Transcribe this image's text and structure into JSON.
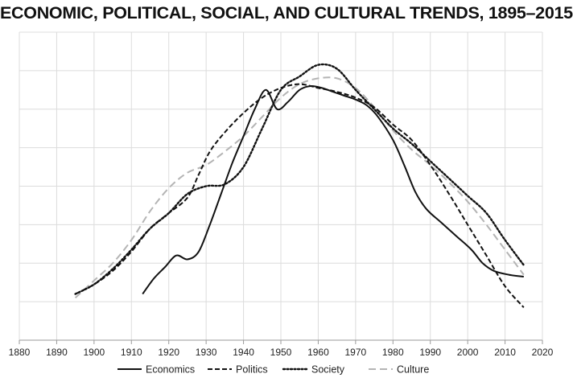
{
  "chart_data": {
    "type": "line",
    "title": "ECONOMIC, POLITICAL, SOCIAL, AND CULTURAL TRENDS, 1895–2015",
    "xlabel": "",
    "ylabel": "",
    "xlim": [
      1880,
      2020
    ],
    "ylim": [
      0,
      8
    ],
    "x_ticks": [
      1880,
      1890,
      1900,
      1910,
      1920,
      1930,
      1940,
      1950,
      1960,
      1970,
      1980,
      1990,
      2000,
      2010,
      2020
    ],
    "y_tick_labels_shown": false,
    "grid": true,
    "legend_position": "bottom",
    "series": [
      {
        "name": "Economics",
        "color": "#111111",
        "dash": "solid",
        "points": [
          [
            1913,
            1.2
          ],
          [
            1916,
            1.6
          ],
          [
            1919,
            1.9
          ],
          [
            1922,
            2.2
          ],
          [
            1925,
            2.1
          ],
          [
            1928,
            2.3
          ],
          [
            1931,
            3.0
          ],
          [
            1934,
            3.8
          ],
          [
            1937,
            4.6
          ],
          [
            1940,
            5.3
          ],
          [
            1943,
            6.0
          ],
          [
            1946,
            6.5
          ],
          [
            1949,
            6.0
          ],
          [
            1952,
            6.2
          ],
          [
            1955,
            6.5
          ],
          [
            1958,
            6.6
          ],
          [
            1961,
            6.55
          ],
          [
            1964,
            6.45
          ],
          [
            1967,
            6.35
          ],
          [
            1970,
            6.25
          ],
          [
            1973,
            6.1
          ],
          [
            1976,
            5.8
          ],
          [
            1980,
            5.2
          ],
          [
            1983,
            4.55
          ],
          [
            1986,
            3.85
          ],
          [
            1989,
            3.4
          ],
          [
            1993,
            3.05
          ],
          [
            1997,
            2.7
          ],
          [
            2001,
            2.35
          ],
          [
            2004,
            2.0
          ],
          [
            2007,
            1.8
          ],
          [
            2011,
            1.7
          ],
          [
            2015,
            1.65
          ]
        ]
      },
      {
        "name": "Politics",
        "color": "#111111",
        "dash": "dashed",
        "points": [
          [
            1895,
            1.2
          ],
          [
            1900,
            1.45
          ],
          [
            1905,
            1.8
          ],
          [
            1910,
            2.3
          ],
          [
            1915,
            2.9
          ],
          [
            1920,
            3.3
          ],
          [
            1925,
            3.7
          ],
          [
            1928,
            4.3
          ],
          [
            1931,
            4.9
          ],
          [
            1935,
            5.4
          ],
          [
            1940,
            5.9
          ],
          [
            1945,
            6.3
          ],
          [
            1950,
            6.55
          ],
          [
            1955,
            6.65
          ],
          [
            1960,
            6.55
          ],
          [
            1965,
            6.45
          ],
          [
            1970,
            6.3
          ],
          [
            1975,
            6.05
          ],
          [
            1980,
            5.6
          ],
          [
            1985,
            5.2
          ],
          [
            1990,
            4.55
          ],
          [
            1995,
            3.8
          ],
          [
            2000,
            3.0
          ],
          [
            2005,
            2.2
          ],
          [
            2010,
            1.4
          ],
          [
            2015,
            0.85
          ]
        ]
      },
      {
        "name": "Society",
        "color": "#111111",
        "dash": "dotted",
        "points": [
          [
            1895,
            1.2
          ],
          [
            1900,
            1.45
          ],
          [
            1905,
            1.85
          ],
          [
            1910,
            2.35
          ],
          [
            1915,
            2.9
          ],
          [
            1920,
            3.3
          ],
          [
            1925,
            3.8
          ],
          [
            1930,
            4.0
          ],
          [
            1935,
            4.05
          ],
          [
            1940,
            4.5
          ],
          [
            1945,
            5.5
          ],
          [
            1950,
            6.5
          ],
          [
            1955,
            6.85
          ],
          [
            1960,
            7.15
          ],
          [
            1965,
            7.05
          ],
          [
            1970,
            6.5
          ],
          [
            1975,
            6.0
          ],
          [
            1980,
            5.5
          ],
          [
            1985,
            5.1
          ],
          [
            1990,
            4.65
          ],
          [
            1995,
            4.2
          ],
          [
            2000,
            3.75
          ],
          [
            2005,
            3.3
          ],
          [
            2010,
            2.6
          ],
          [
            2015,
            1.95
          ]
        ]
      },
      {
        "name": "Culture",
        "color": "#b4b4b4",
        "dash": "long-dashed",
        "points": [
          [
            1895,
            1.1
          ],
          [
            1900,
            1.55
          ],
          [
            1905,
            2.0
          ],
          [
            1910,
            2.6
          ],
          [
            1915,
            3.35
          ],
          [
            1920,
            3.95
          ],
          [
            1925,
            4.35
          ],
          [
            1930,
            4.55
          ],
          [
            1935,
            4.9
          ],
          [
            1940,
            5.3
          ],
          [
            1945,
            5.8
          ],
          [
            1950,
            6.3
          ],
          [
            1955,
            6.65
          ],
          [
            1960,
            6.8
          ],
          [
            1965,
            6.8
          ],
          [
            1970,
            6.55
          ],
          [
            1975,
            6.05
          ],
          [
            1980,
            5.45
          ],
          [
            1985,
            4.95
          ],
          [
            1990,
            4.55
          ],
          [
            1995,
            4.1
          ],
          [
            2000,
            3.6
          ],
          [
            2005,
            3.0
          ],
          [
            2010,
            2.35
          ],
          [
            2015,
            1.7
          ]
        ]
      }
    ]
  }
}
